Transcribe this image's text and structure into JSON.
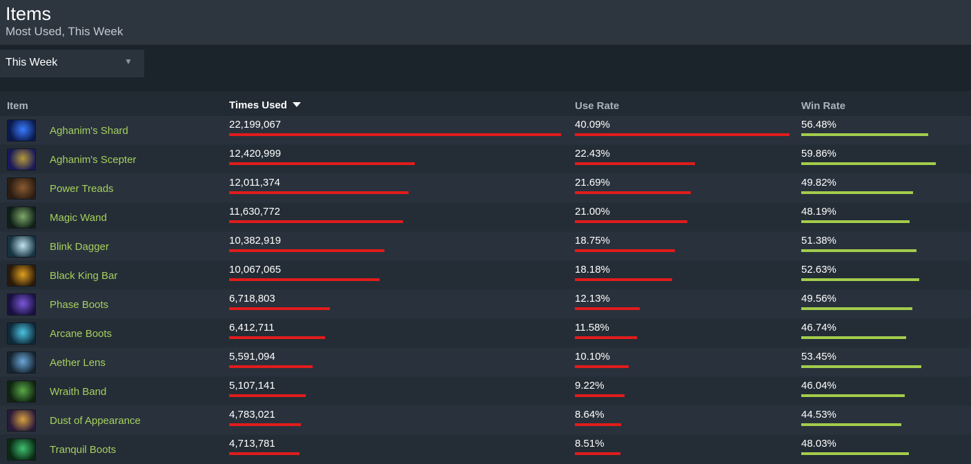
{
  "header": {
    "title": "Items",
    "subtitle": "Most Used, This Week"
  },
  "filter": {
    "selected": "This Week"
  },
  "table": {
    "columns": {
      "item": "Item",
      "times_used": "Times Used",
      "use_rate": "Use Rate",
      "win_rate": "Win Rate"
    },
    "sort_column": "times_used",
    "sort_direction": "descending",
    "colors": {
      "times_bar": "#e31b1b",
      "use_bar": "#e31b1b",
      "win_bar": "#a4cd4c",
      "item_link": "#a6d05e"
    },
    "rows": [
      {
        "name": "Aghanim's Shard",
        "times_used": "22,199,067",
        "times_value": 22199067,
        "use_rate": "40.09%",
        "use_value": 40.09,
        "win_rate": "56.48%",
        "win_value": 56.48,
        "icon": "aghanims-shard-icon",
        "icon_colors": [
          "#0b1a4d",
          "#3a7bff"
        ]
      },
      {
        "name": "Aghanim's Scepter",
        "times_used": "12,420,999",
        "times_value": 12420999,
        "use_rate": "22.43%",
        "use_value": 22.43,
        "win_rate": "59.86%",
        "win_value": 59.86,
        "icon": "aghanims-scepter-icon",
        "icon_colors": [
          "#1a1a5a",
          "#b59a3a"
        ]
      },
      {
        "name": "Power Treads",
        "times_used": "12,011,374",
        "times_value": 12011374,
        "use_rate": "21.69%",
        "use_value": 21.69,
        "win_rate": "49.82%",
        "win_value": 49.82,
        "icon": "power-treads-icon",
        "icon_colors": [
          "#2b1d12",
          "#8a5a32"
        ]
      },
      {
        "name": "Magic Wand",
        "times_used": "11,630,772",
        "times_value": 11630772,
        "use_rate": "21.00%",
        "use_value": 21.0,
        "win_rate": "48.19%",
        "win_value": 48.19,
        "icon": "magic-wand-icon",
        "icon_colors": [
          "#0f1f17",
          "#7fa86a"
        ]
      },
      {
        "name": "Blink Dagger",
        "times_used": "10,382,919",
        "times_value": 10382919,
        "use_rate": "18.75%",
        "use_value": 18.75,
        "win_rate": "51.38%",
        "win_value": 51.38,
        "icon": "blink-dagger-icon",
        "icon_colors": [
          "#173342",
          "#bfe3ef"
        ]
      },
      {
        "name": "Black King Bar",
        "times_used": "10,067,065",
        "times_value": 10067065,
        "use_rate": "18.18%",
        "use_value": 18.18,
        "win_rate": "52.63%",
        "win_value": 52.63,
        "icon": "black-king-bar-icon",
        "icon_colors": [
          "#2a1a0a",
          "#e0a020"
        ]
      },
      {
        "name": "Phase Boots",
        "times_used": "6,718,803",
        "times_value": 6718803,
        "use_rate": "12.13%",
        "use_value": 12.13,
        "win_rate": "49.56%",
        "win_value": 49.56,
        "icon": "phase-boots-icon",
        "icon_colors": [
          "#1a1040",
          "#7a58d8"
        ]
      },
      {
        "name": "Arcane Boots",
        "times_used": "6,412,711",
        "times_value": 6412711,
        "use_rate": "11.58%",
        "use_value": 11.58,
        "win_rate": "46.74%",
        "win_value": 46.74,
        "icon": "arcane-boots-icon",
        "icon_colors": [
          "#0e2a3a",
          "#4cc3e0"
        ]
      },
      {
        "name": "Aether Lens",
        "times_used": "5,591,094",
        "times_value": 5591094,
        "use_rate": "10.10%",
        "use_value": 10.1,
        "win_rate": "53.45%",
        "win_value": 53.45,
        "icon": "aether-lens-icon",
        "icon_colors": [
          "#162430",
          "#6aa6d8"
        ]
      },
      {
        "name": "Wraith Band",
        "times_used": "5,107,141",
        "times_value": 5107141,
        "use_rate": "9.22%",
        "use_value": 9.22,
        "win_rate": "46.04%",
        "win_value": 46.04,
        "icon": "wraith-band-icon",
        "icon_colors": [
          "#0f2410",
          "#59a848"
        ]
      },
      {
        "name": "Dust of Appearance",
        "times_used": "4,783,021",
        "times_value": 4783021,
        "use_rate": "8.64%",
        "use_value": 8.64,
        "win_rate": "44.53%",
        "win_value": 44.53,
        "icon": "dust-of-appearance-icon",
        "icon_colors": [
          "#2a1a3a",
          "#d8a040"
        ]
      },
      {
        "name": "Tranquil Boots",
        "times_used": "4,713,781",
        "times_value": 4713781,
        "use_rate": "8.51%",
        "use_value": 8.51,
        "win_rate": "48.03%",
        "win_value": 48.03,
        "icon": "tranquil-boots-icon",
        "icon_colors": [
          "#0a2a14",
          "#40c070"
        ]
      }
    ]
  }
}
